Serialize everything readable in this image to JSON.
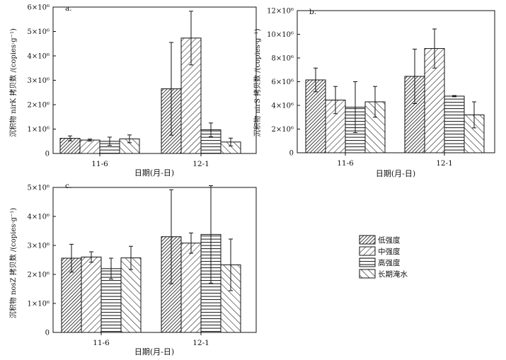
{
  "figure": {
    "legend": [
      {
        "label": "低强度",
        "pattern": "p-dense"
      },
      {
        "label": "中强度",
        "pattern": "p-fwd"
      },
      {
        "label": "高强度",
        "pattern": "p-horiz"
      },
      {
        "label": "长期淹水",
        "pattern": "p-back"
      }
    ]
  },
  "chart_data": [
    {
      "type": "bar",
      "panel_label": "a.",
      "ylabel": "沉积物 nirK 拷贝数 /(copies·g⁻¹)",
      "xlabel": "日期(月-日)",
      "categories": [
        "11-6",
        "12-1"
      ],
      "ylim": [
        0,
        6000000
      ],
      "yticks": [
        0,
        1000000,
        2000000,
        3000000,
        4000000,
        5000000,
        6000000
      ],
      "ytick_labels": [
        "0",
        "1×10⁶",
        "2×10⁶",
        "3×10⁶",
        "4×10⁶",
        "5×10⁶",
        "6×10⁶"
      ],
      "series": [
        {
          "name": "低强度",
          "values": [
            620000,
            2650000
          ],
          "errors": [
            100000,
            1900000
          ]
        },
        {
          "name": "中强度",
          "values": [
            550000,
            4730000
          ],
          "errors": [
            40000,
            1100000
          ]
        },
        {
          "name": "高强度",
          "values": [
            500000,
            970000
          ],
          "errors": [
            170000,
            280000
          ]
        },
        {
          "name": "长期淹水",
          "values": [
            600000,
            470000
          ],
          "errors": [
            160000,
            160000
          ]
        }
      ]
    },
    {
      "type": "bar",
      "panel_label": "b.",
      "ylabel": "沉积物 nirS 拷贝数 /(copies·g⁻¹)",
      "xlabel": "日期(月-日)",
      "categories": [
        "11-6",
        "12-1"
      ],
      "ylim": [
        0,
        12000000
      ],
      "yticks": [
        0,
        2000000,
        4000000,
        6000000,
        8000000,
        10000000,
        12000000
      ],
      "ytick_labels": [
        "0",
        "2×10⁶",
        "4×10⁶",
        "6×10⁶",
        "8×10⁶",
        "10×10⁶",
        "12×10⁶"
      ],
      "series": [
        {
          "name": "低强度",
          "values": [
            6150000,
            6450000
          ],
          "errors": [
            1000000,
            2300000
          ]
        },
        {
          "name": "中强度",
          "values": [
            4450000,
            8800000
          ],
          "errors": [
            1150000,
            1650000
          ]
        },
        {
          "name": "高强度",
          "values": [
            3850000,
            4780000
          ],
          "errors": [
            2150000,
            50000
          ]
        },
        {
          "name": "长期淹水",
          "values": [
            4300000,
            3200000
          ],
          "errors": [
            1300000,
            1100000
          ]
        }
      ]
    },
    {
      "type": "bar",
      "panel_label": "c.",
      "ylabel": "沉积物 nosZ 拷贝数 /(copies·g⁻¹)",
      "xlabel": "日期(月-日)",
      "categories": [
        "11-6",
        "12-1"
      ],
      "ylim": [
        0,
        5000000
      ],
      "yticks": [
        0,
        1000000,
        2000000,
        3000000,
        4000000,
        5000000
      ],
      "ytick_labels": [
        "0",
        "1×10⁶",
        "2×10⁶",
        "3×10⁶",
        "4×10⁶",
        "5×10⁶"
      ],
      "series": [
        {
          "name": "低强度",
          "values": [
            2560000,
            3300000
          ],
          "errors": [
            480000,
            1620000
          ]
        },
        {
          "name": "中强度",
          "values": [
            2600000,
            3080000
          ],
          "errors": [
            180000,
            350000
          ]
        },
        {
          "name": "高强度",
          "values": [
            2200000,
            3380000
          ],
          "errors": [
            360000,
            1680000
          ]
        },
        {
          "name": "长期淹水",
          "values": [
            2570000,
            2330000
          ],
          "errors": [
            400000,
            890000
          ]
        }
      ]
    }
  ]
}
